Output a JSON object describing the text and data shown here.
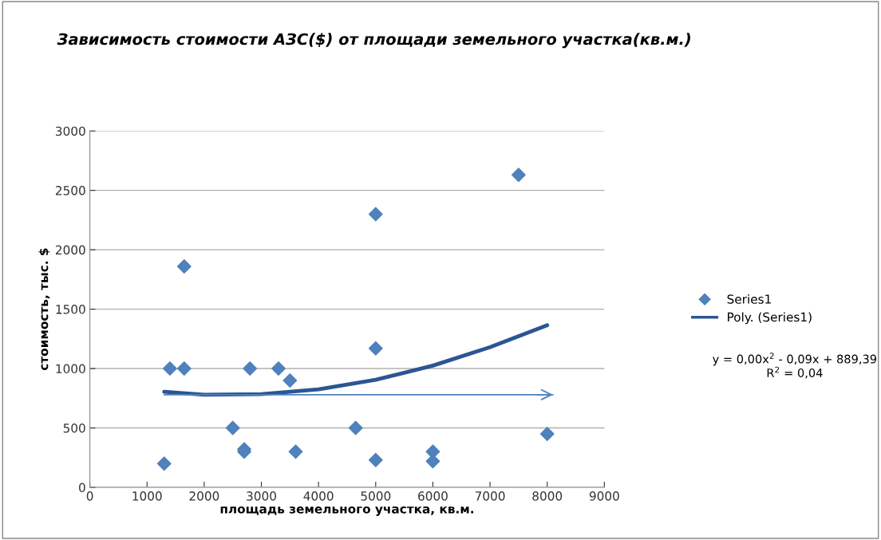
{
  "chart_data": {
    "type": "scatter",
    "title": "Зависимость стоимости АЗС($) от площади земельного участка(кв.м.)",
    "xlabel": "площадь земельного участка, кв.м.",
    "ylabel": "стоимость, тыс. $",
    "xlim": [
      0,
      9000
    ],
    "xticks": [
      0,
      1000,
      2000,
      3000,
      4000,
      5000,
      6000,
      7000,
      8000,
      9000
    ],
    "ylim": [
      0,
      3000
    ],
    "yticks": [
      0,
      500,
      1000,
      1500,
      2000,
      2500,
      3000
    ],
    "grid": "y",
    "legend": "right",
    "marker": "diamond",
    "annotations": [
      "y = 0,00x$^{2}$ - 0,09x + 889,39\nR$^{2}$ = 0,04"
    ],
    "series": [
      {
        "name": "Series1",
        "type": "scatter",
        "color": "#4f81bd",
        "x": [
          1300,
          1400,
          1650,
          1650,
          2500,
          2700,
          2700,
          2800,
          3300,
          3500,
          3600,
          4650,
          5000,
          5000,
          5000,
          6000,
          6000,
          7500,
          8000
        ],
        "values": [
          200,
          1000,
          1860,
          1000,
          500,
          320,
          300,
          1000,
          1000,
          900,
          300,
          500,
          2300,
          1170,
          230,
          300,
          220,
          2630,
          450
        ]
      },
      {
        "name": "Poly. (Series1)",
        "type": "line",
        "color": "#2c5593",
        "marker": "none",
        "x": [
          1300,
          2000,
          3000,
          4000,
          5000,
          6000,
          7000,
          8000
        ],
        "values": [
          805,
          780,
          785,
          825,
          905,
          1025,
          1180,
          1365
        ]
      },
      {
        "type": "line",
        "color": "#4f81bd",
        "marker": "none",
        "x": [
          1300,
          8100
        ],
        "values": [
          780,
          780
        ]
      }
    ]
  }
}
